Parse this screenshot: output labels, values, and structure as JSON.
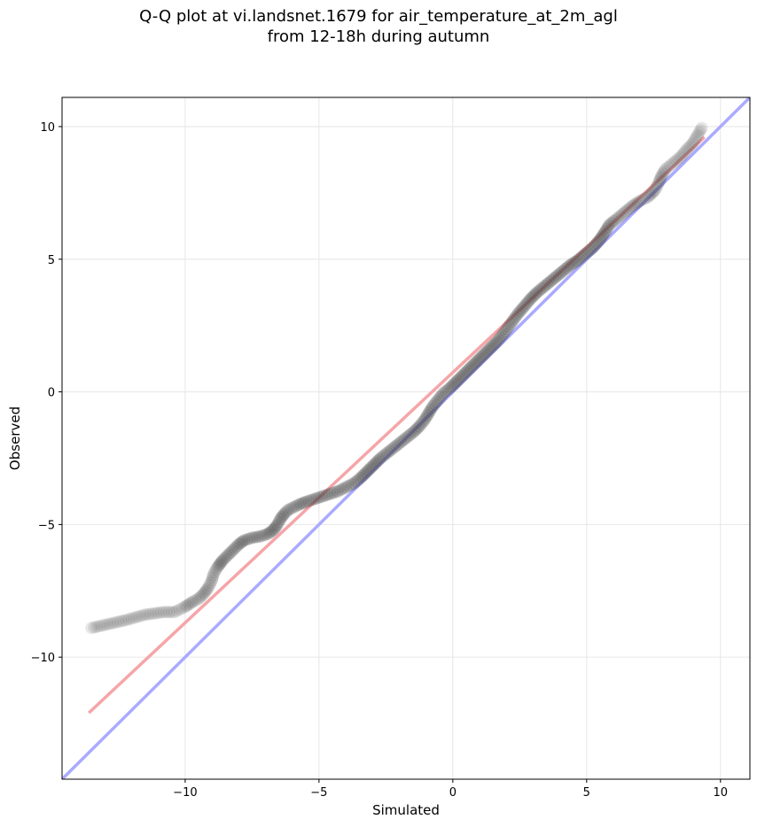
{
  "chart_data": {
    "type": "scatter",
    "title_lines": [
      "Q-Q plot at vi.landsnet.1679 for air_temperature_at_2m_agl",
      "from 12-18h during autumn"
    ],
    "xlabel": "Simulated",
    "ylabel": "Observed",
    "xlim": [
      -14.6,
      11.1
    ],
    "ylim": [
      -14.6,
      11.1
    ],
    "xticks": [
      {
        "value": -10,
        "label": "−10"
      },
      {
        "value": -5,
        "label": "−5"
      },
      {
        "value": 0,
        "label": "0"
      },
      {
        "value": 5,
        "label": "5"
      },
      {
        "value": 10,
        "label": "10"
      }
    ],
    "yticks": [
      {
        "value": -10,
        "label": "−10"
      },
      {
        "value": -5,
        "label": "−5"
      },
      {
        "value": 0,
        "label": "0"
      },
      {
        "value": 5,
        "label": "5"
      },
      {
        "value": 10,
        "label": "10"
      }
    ],
    "grid": true,
    "reference_line": {
      "x": [
        -14.6,
        11.1
      ],
      "y": [
        -14.6,
        11.1
      ],
      "color": "#aaaaff"
    },
    "fit_line": {
      "x": [
        -13.6,
        9.4
      ],
      "y": [
        -12.1,
        9.6
      ],
      "color": "#f5a5a8"
    },
    "points": [
      [
        -13.5,
        -8.9
      ],
      [
        -12.2,
        -8.6
      ],
      [
        -11.5,
        -8.4
      ],
      [
        -10.8,
        -8.3
      ],
      [
        -10.4,
        -8.3
      ],
      [
        -10.2,
        -8.2
      ],
      [
        -10.0,
        -8.1
      ],
      [
        -9.7,
        -7.9
      ],
      [
        -9.5,
        -7.8
      ],
      [
        -9.3,
        -7.6
      ],
      [
        -9.15,
        -7.4
      ],
      [
        -9.0,
        -7.1
      ],
      [
        -8.95,
        -6.9
      ],
      [
        -8.85,
        -6.7
      ],
      [
        -8.75,
        -6.55
      ],
      [
        -8.6,
        -6.35
      ],
      [
        -8.45,
        -6.2
      ],
      [
        -8.3,
        -6.05
      ],
      [
        -8.15,
        -5.9
      ],
      [
        -8.0,
        -5.75
      ],
      [
        -7.8,
        -5.6
      ],
      [
        -7.5,
        -5.5
      ],
      [
        -7.2,
        -5.45
      ],
      [
        -6.9,
        -5.35
      ],
      [
        -6.7,
        -5.2
      ],
      [
        -6.55,
        -5.0
      ],
      [
        -6.45,
        -4.8
      ],
      [
        -6.3,
        -4.6
      ],
      [
        -6.15,
        -4.45
      ],
      [
        -5.95,
        -4.35
      ],
      [
        -5.75,
        -4.25
      ],
      [
        -5.5,
        -4.15
      ],
      [
        -5.2,
        -4.05
      ],
      [
        -4.9,
        -3.95
      ],
      [
        -4.6,
        -3.85
      ],
      [
        -4.3,
        -3.75
      ],
      [
        -4.0,
        -3.6
      ],
      [
        -3.7,
        -3.45
      ],
      [
        -3.45,
        -3.25
      ],
      [
        -3.2,
        -3.0
      ],
      [
        -2.95,
        -2.75
      ],
      [
        -2.7,
        -2.5
      ],
      [
        -2.45,
        -2.3
      ],
      [
        -2.2,
        -2.1
      ],
      [
        -1.95,
        -1.9
      ],
      [
        -1.7,
        -1.7
      ],
      [
        -1.45,
        -1.5
      ],
      [
        -1.25,
        -1.3
      ],
      [
        -1.05,
        -1.05
      ],
      [
        -0.9,
        -0.8
      ],
      [
        -0.75,
        -0.55
      ],
      [
        -0.55,
        -0.3
      ],
      [
        -0.35,
        -0.05
      ],
      [
        -0.1,
        0.15
      ],
      [
        0.15,
        0.4
      ],
      [
        0.4,
        0.65
      ],
      [
        0.65,
        0.9
      ],
      [
        0.9,
        1.15
      ],
      [
        1.15,
        1.4
      ],
      [
        1.4,
        1.65
      ],
      [
        1.65,
        1.9
      ],
      [
        1.9,
        2.2
      ],
      [
        2.15,
        2.55
      ],
      [
        2.4,
        2.9
      ],
      [
        2.65,
        3.2
      ],
      [
        2.9,
        3.5
      ],
      [
        3.15,
        3.75
      ],
      [
        3.45,
        4.0
      ],
      [
        3.75,
        4.25
      ],
      [
        4.05,
        4.5
      ],
      [
        4.35,
        4.75
      ],
      [
        4.65,
        4.95
      ],
      [
        4.95,
        5.2
      ],
      [
        5.25,
        5.45
      ],
      [
        5.5,
        5.75
      ],
      [
        5.7,
        6.05
      ],
      [
        5.85,
        6.3
      ],
      [
        6.1,
        6.5
      ],
      [
        6.4,
        6.75
      ],
      [
        6.7,
        7.0
      ],
      [
        7.0,
        7.2
      ],
      [
        7.3,
        7.35
      ],
      [
        7.55,
        7.6
      ],
      [
        7.7,
        7.9
      ],
      [
        7.8,
        8.15
      ],
      [
        7.95,
        8.4
      ],
      [
        8.2,
        8.6
      ],
      [
        8.5,
        8.85
      ],
      [
        8.75,
        9.15
      ],
      [
        8.95,
        9.35
      ],
      [
        9.3,
        9.95
      ]
    ]
  }
}
